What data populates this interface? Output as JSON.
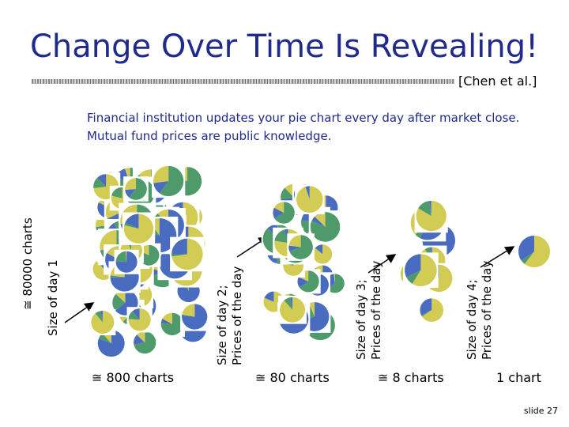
{
  "title": "Change Over Time Is Revealing!",
  "citation": "[Chen et al.]",
  "description_lines": [
    "Financial institution updates your pie chart every day after market close.",
    "Mutual fund prices are public knowledge."
  ],
  "left_axis": {
    "count_label": "≅ 80000 charts",
    "size_label": "Size of day 1"
  },
  "stages": [
    {
      "label_line1": "Size of day 2;",
      "label_line2": "Prices of the day",
      "count": "≅ 800 charts"
    },
    {
      "label_line1": "Size of day 3;",
      "label_line2": "Prices of the day",
      "count": "≅ 80 charts"
    },
    {
      "label_line1": "Size of day 4;",
      "label_line2": "Prices of the day",
      "count": "≅ 8 charts"
    },
    {
      "count": "1 chart"
    }
  ],
  "pie_colors": {
    "green": "#4e9a6a",
    "blue": "#4a6cc0",
    "yellow": "#d2cc55"
  },
  "slide_number": "slide 27"
}
